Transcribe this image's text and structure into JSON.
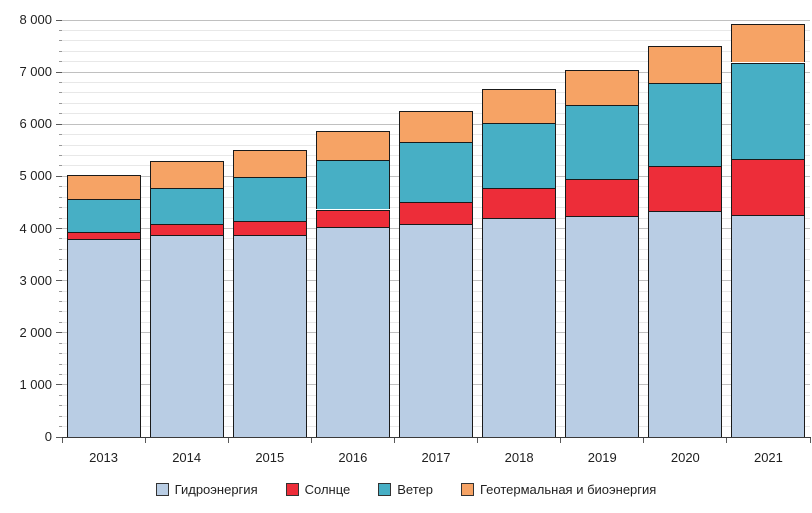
{
  "chart_data": {
    "type": "bar",
    "stacked": true,
    "title": "",
    "categories": [
      "2013",
      "2014",
      "2015",
      "2016",
      "2017",
      "2018",
      "2019",
      "2020",
      "2021"
    ],
    "series": [
      {
        "name": "Гидроэнергия",
        "color": "#b9cde4",
        "values": [
          3790,
          3885,
          3880,
          4020,
          4080,
          4195,
          4240,
          4335,
          4260
        ]
      },
      {
        "name": "Солнце",
        "color": "#ed2d39",
        "values": [
          150,
          210,
          270,
          345,
          435,
          575,
          710,
          865,
          1065
        ]
      },
      {
        "name": "Ветер",
        "color": "#47afc5",
        "values": [
          625,
          685,
          840,
          945,
          1150,
          1260,
          1420,
          1595,
          1860
        ]
      },
      {
        "name": "Геотермальная и биоэнергия",
        "color": "#f6a365",
        "values": [
          470,
          520,
          515,
          560,
          585,
          640,
          665,
          715,
          730
        ]
      }
    ],
    "totals": [
      5035,
      5300,
      5505,
      5870,
      6250,
      6670,
      7035,
      7510,
      7915
    ],
    "ylim": [
      0,
      8000
    ],
    "y_major_step": 1000,
    "y_minor_step": 200,
    "y_tick_labels": [
      "0",
      "1 000",
      "2 000",
      "3 000",
      "4 000",
      "5 000",
      "6 000",
      "7 000",
      "8 000"
    ],
    "grid": true,
    "legend_position": "bottom"
  }
}
